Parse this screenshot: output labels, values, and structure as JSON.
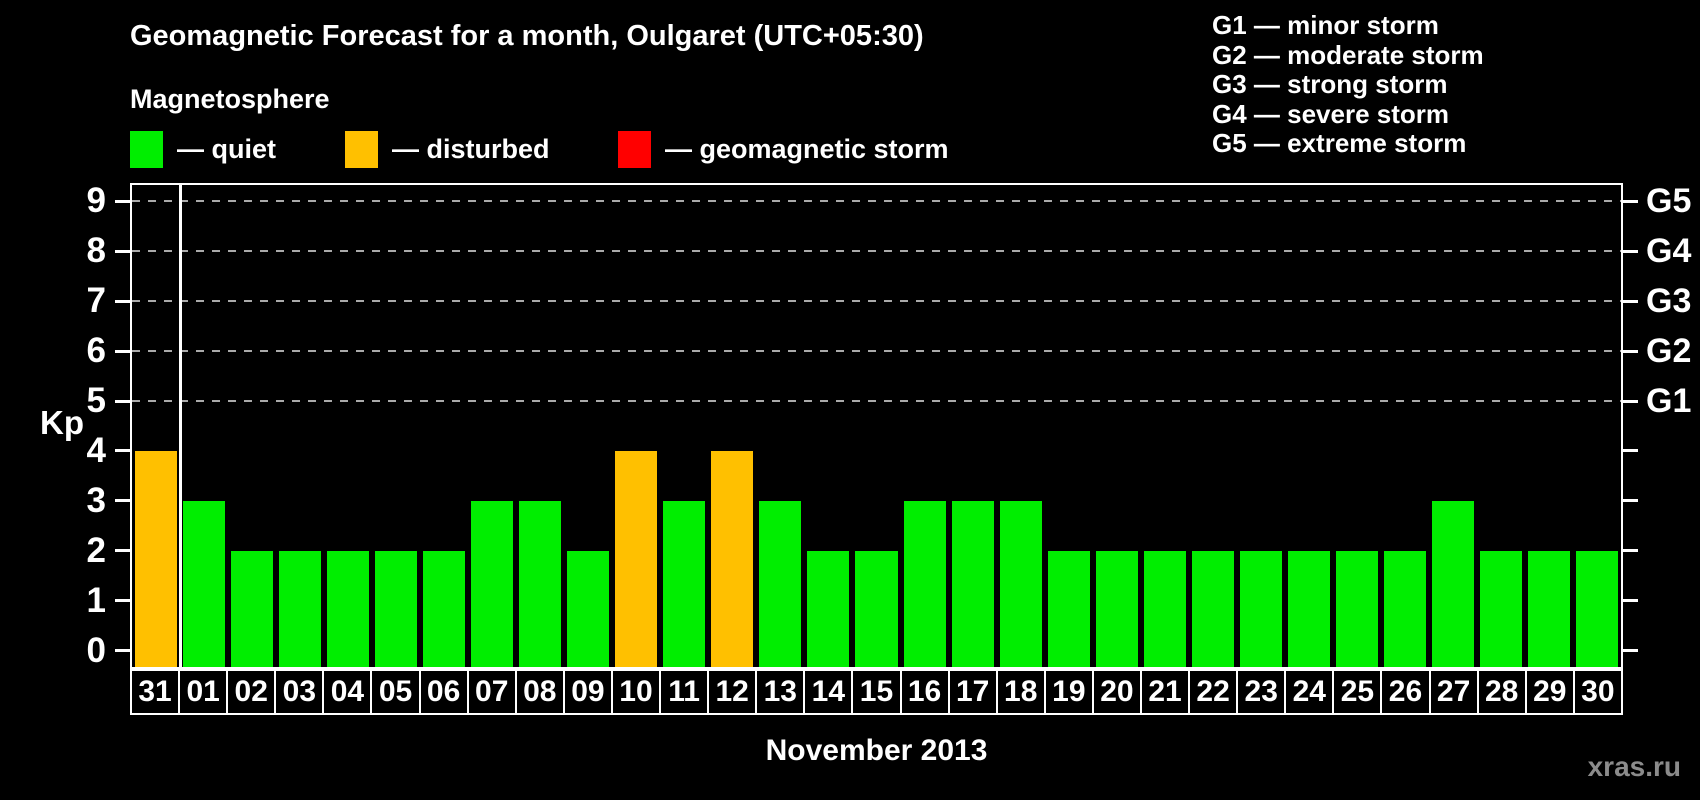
{
  "title": "Geomagnetic Forecast for a month, Oulgaret (UTC+05:30)",
  "legend": {
    "heading": "Magnetosphere",
    "items": [
      {
        "key": "quiet",
        "label": "— quiet",
        "color": "#00ee00"
      },
      {
        "key": "disturbed",
        "label": "— disturbed",
        "color": "#ffc000"
      },
      {
        "key": "storm",
        "label": "— geomagnetic storm",
        "color": "#ff0000"
      }
    ]
  },
  "storm_scale": [
    "G1 — minor storm",
    "G2 — moderate storm",
    "G3 — strong storm",
    "G4 — severe storm",
    "G5 — extreme storm"
  ],
  "watermark": "xras.ru",
  "chart_data": {
    "type": "bar",
    "title": "Geomagnetic Forecast for a month, Oulgaret (UTC+05:30)",
    "xlabel": "November 2013",
    "ylabel": "Kp",
    "ylim": [
      0,
      9
    ],
    "y_ticks": [
      0,
      1,
      2,
      3,
      4,
      5,
      6,
      7,
      8,
      9
    ],
    "gridlines_at": [
      5,
      6,
      7,
      8,
      9
    ],
    "grid": "dashed",
    "legend_position": "top",
    "categories": [
      "31",
      "01",
      "02",
      "03",
      "04",
      "05",
      "06",
      "07",
      "08",
      "09",
      "10",
      "11",
      "12",
      "13",
      "14",
      "15",
      "16",
      "17",
      "18",
      "19",
      "20",
      "21",
      "22",
      "23",
      "24",
      "25",
      "26",
      "27",
      "28",
      "29",
      "30"
    ],
    "values": [
      4,
      3,
      2,
      2,
      2,
      2,
      2,
      3,
      3,
      2,
      4,
      3,
      4,
      3,
      2,
      2,
      3,
      3,
      3,
      2,
      2,
      2,
      2,
      2,
      2,
      2,
      2,
      3,
      2,
      2,
      2
    ],
    "statuses": [
      "disturbed",
      "quiet",
      "quiet",
      "quiet",
      "quiet",
      "quiet",
      "quiet",
      "quiet",
      "quiet",
      "quiet",
      "disturbed",
      "quiet",
      "disturbed",
      "quiet",
      "quiet",
      "quiet",
      "quiet",
      "quiet",
      "quiet",
      "quiet",
      "quiet",
      "quiet",
      "quiet",
      "quiet",
      "quiet",
      "quiet",
      "quiet",
      "quiet",
      "quiet",
      "quiet",
      "quiet"
    ],
    "colors": {
      "quiet": "#00ee00",
      "disturbed": "#ffc000",
      "storm": "#ff0000"
    },
    "month_separator_after_category": "31",
    "right_axis_labels": [
      {
        "kp": 5,
        "label": "G1"
      },
      {
        "kp": 6,
        "label": "G2"
      },
      {
        "kp": 7,
        "label": "G3"
      },
      {
        "kp": 8,
        "label": "G4"
      },
      {
        "kp": 9,
        "label": "G5"
      }
    ]
  }
}
